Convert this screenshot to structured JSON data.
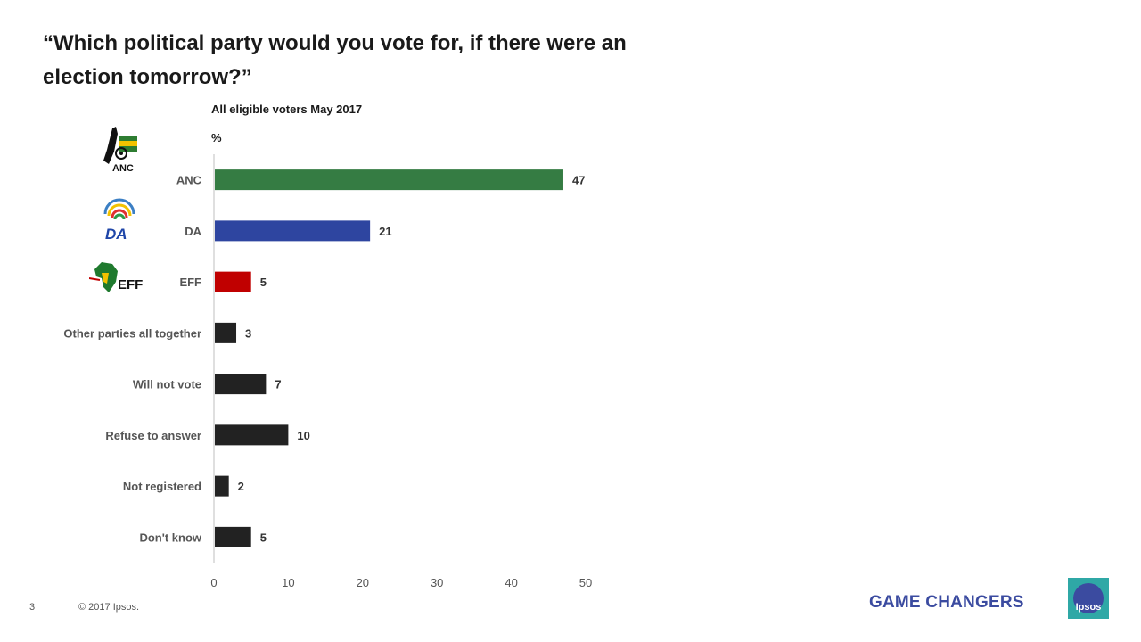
{
  "title": "“Which political party would you vote for, if there were an election tomorrow?”",
  "subtitle": "All eligible voters May 2017",
  "unit": "%",
  "footer": {
    "page_number": "3",
    "copyright": "© 2017 Ipsos.",
    "tagline": "GAME CHANGERS",
    "brand": "Ipsos"
  },
  "logos": {
    "anc": {
      "icon": "anc-logo-icon",
      "text": "ANC"
    },
    "da": {
      "icon": "da-logo-icon",
      "text": "DA"
    },
    "eff": {
      "icon": "eff-logo-icon",
      "text": "EFF"
    }
  },
  "chart_data": {
    "type": "bar",
    "orientation": "horizontal",
    "categories": [
      "ANC",
      "DA",
      "EFF",
      "Other parties all together",
      "Will not vote",
      "Refuse to answer",
      "Not registered",
      "Don't know"
    ],
    "values": [
      47,
      21,
      5,
      3,
      7,
      10,
      2,
      5
    ],
    "colors": [
      "#357c43",
      "#2e45a0",
      "#c00000",
      "#222222",
      "#222222",
      "#222222",
      "#222222",
      "#222222"
    ],
    "xlim": [
      0,
      50
    ],
    "xticks": [
      0,
      10,
      20,
      30,
      40,
      50
    ],
    "data_labels": true,
    "grid": false
  }
}
